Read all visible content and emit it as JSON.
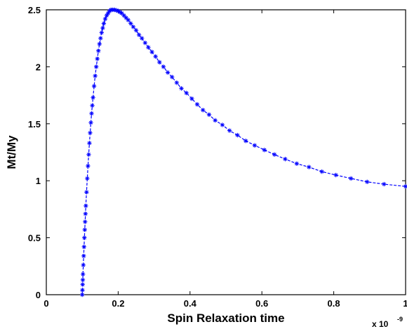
{
  "chart_data": {
    "type": "line",
    "xlabel": "Spin Relaxation time",
    "ylabel": "Mt/My",
    "x_multiplier_label": "x 10",
    "x_multiplier_exponent": "-9",
    "x_multiplier": 1e-09,
    "xlim": [
      0,
      1
    ],
    "ylim": [
      0,
      2.5
    ],
    "xticks": [
      0,
      0.2,
      0.4,
      0.6,
      0.8,
      1
    ],
    "xtick_labels": [
      "0",
      "0.2",
      "0.4",
      "0.6",
      "0.8",
      "1"
    ],
    "yticks": [
      0,
      0.5,
      1,
      1.5,
      2,
      2.5
    ],
    "ytick_labels": [
      "0",
      "0.5",
      "1",
      "1.5",
      "2",
      "2.5"
    ],
    "grid": false,
    "line_color": "#0000ff",
    "line_style": "dashed",
    "marker": "asterisk",
    "series": [
      {
        "x": [
          0.1,
          0.1005,
          0.101,
          0.1015,
          0.102,
          0.103,
          0.104,
          0.105,
          0.106,
          0.107,
          0.108,
          0.109,
          0.11,
          0.112,
          0.114,
          0.116,
          0.118,
          0.12,
          0.122,
          0.124,
          0.126,
          0.128,
          0.13,
          0.133,
          0.136,
          0.139,
          0.142,
          0.145,
          0.148,
          0.151,
          0.154,
          0.157,
          0.16,
          0.164,
          0.168,
          0.172,
          0.176,
          0.18,
          0.185,
          0.19,
          0.195,
          0.2,
          0.205,
          0.21,
          0.216,
          0.222,
          0.228,
          0.235,
          0.242,
          0.25,
          0.258,
          0.266,
          0.275,
          0.284,
          0.294,
          0.304,
          0.315,
          0.326,
          0.338,
          0.35,
          0.363,
          0.376,
          0.39,
          0.405,
          0.42,
          0.436,
          0.453,
          0.47,
          0.49,
          0.51,
          0.532,
          0.555,
          0.58,
          0.607,
          0.635,
          0.665,
          0.697,
          0.731,
          0.767,
          0.806,
          0.848,
          0.893,
          0.94,
          1.0
        ],
        "y": [
          0.0,
          0.04,
          0.09,
          0.13,
          0.18,
          0.26,
          0.34,
          0.42,
          0.5,
          0.57,
          0.64,
          0.71,
          0.78,
          0.9,
          1.02,
          1.13,
          1.23,
          1.33,
          1.42,
          1.51,
          1.59,
          1.66,
          1.73,
          1.83,
          1.92,
          2.0,
          2.07,
          2.14,
          2.2,
          2.25,
          2.3,
          2.34,
          2.38,
          2.42,
          2.45,
          2.47,
          2.49,
          2.5,
          2.5,
          2.5,
          2.495,
          2.49,
          2.48,
          2.47,
          2.45,
          2.43,
          2.41,
          2.38,
          2.35,
          2.32,
          2.28,
          2.25,
          2.21,
          2.17,
          2.13,
          2.09,
          2.04,
          2.0,
          1.95,
          1.91,
          1.86,
          1.81,
          1.77,
          1.72,
          1.67,
          1.62,
          1.58,
          1.53,
          1.49,
          1.44,
          1.4,
          1.35,
          1.31,
          1.27,
          1.23,
          1.19,
          1.15,
          1.12,
          1.08,
          1.05,
          1.02,
          0.99,
          0.97,
          0.95
        ]
      }
    ]
  }
}
